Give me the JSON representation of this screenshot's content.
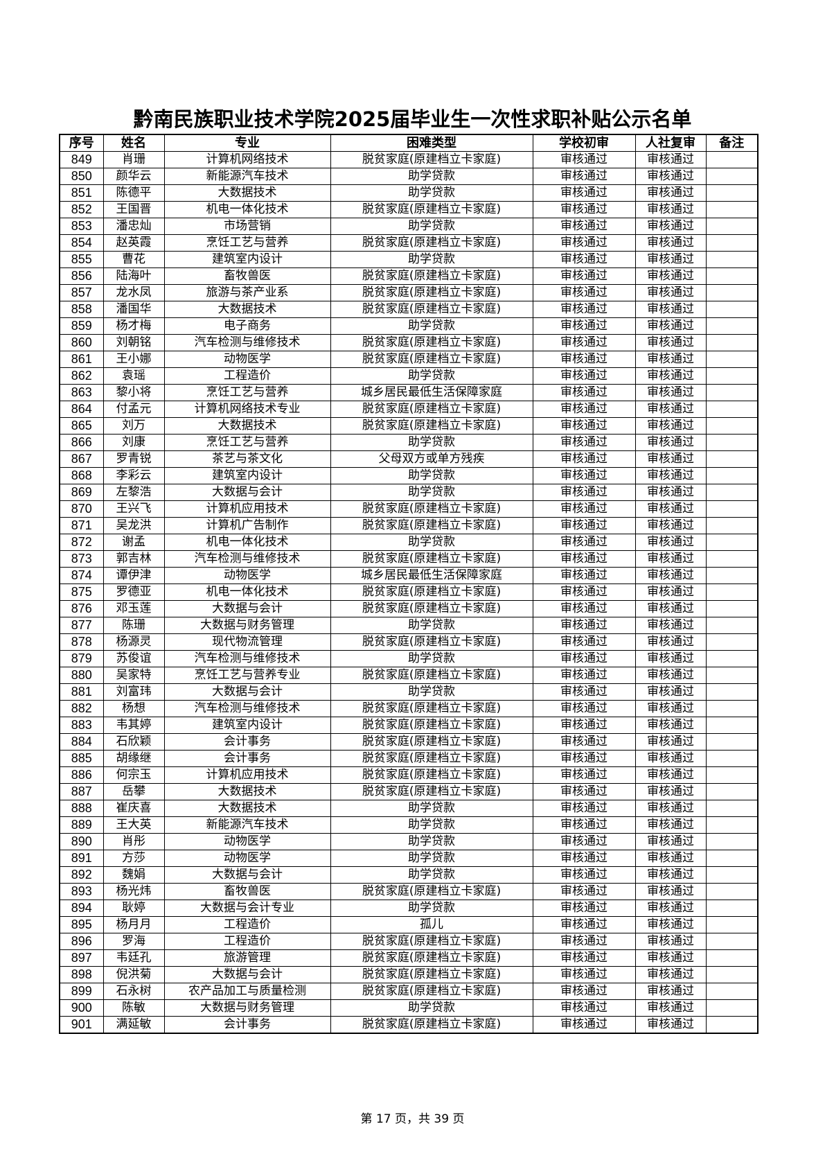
{
  "title": "黔南民族职业技术学院2025届毕业生一次性求职补贴公示名单",
  "columns": [
    "序号",
    "姓名",
    "专业",
    "困难类型",
    "学校初审",
    "人社复审",
    "备注"
  ],
  "rows": [
    [
      "849",
      "肖珊",
      "计算机网络技术",
      "脱贫家庭(原建档立卡家庭)",
      "审核通过",
      "审核通过",
      ""
    ],
    [
      "850",
      "颜华云",
      "新能源汽车技术",
      "助学贷款",
      "审核通过",
      "审核通过",
      ""
    ],
    [
      "851",
      "陈德平",
      "大数据技术",
      "助学贷款",
      "审核通过",
      "审核通过",
      ""
    ],
    [
      "852",
      "王国晋",
      "机电一体化技术",
      "脱贫家庭(原建档立卡家庭)",
      "审核通过",
      "审核通过",
      ""
    ],
    [
      "853",
      "潘忠灿",
      "市场营销",
      "助学贷款",
      "审核通过",
      "审核通过",
      ""
    ],
    [
      "854",
      "赵英霞",
      "烹饪工艺与营养",
      "脱贫家庭(原建档立卡家庭)",
      "审核通过",
      "审核通过",
      ""
    ],
    [
      "855",
      "曹花",
      "建筑室内设计",
      "助学贷款",
      "审核通过",
      "审核通过",
      ""
    ],
    [
      "856",
      "陆海叶",
      "畜牧兽医",
      "脱贫家庭(原建档立卡家庭)",
      "审核通过",
      "审核通过",
      ""
    ],
    [
      "857",
      "龙水凤",
      "旅游与茶产业系",
      "脱贫家庭(原建档立卡家庭)",
      "审核通过",
      "审核通过",
      ""
    ],
    [
      "858",
      "潘国华",
      "大数据技术",
      "脱贫家庭(原建档立卡家庭)",
      "审核通过",
      "审核通过",
      ""
    ],
    [
      "859",
      "杨才梅",
      "电子商务",
      "助学贷款",
      "审核通过",
      "审核通过",
      ""
    ],
    [
      "860",
      "刘朝铭",
      "汽车检测与维修技术",
      "脱贫家庭(原建档立卡家庭)",
      "审核通过",
      "审核通过",
      ""
    ],
    [
      "861",
      "王小娜",
      "动物医学",
      "脱贫家庭(原建档立卡家庭)",
      "审核通过",
      "审核通过",
      ""
    ],
    [
      "862",
      "袁瑶",
      "工程造价",
      "助学贷款",
      "审核通过",
      "审核通过",
      ""
    ],
    [
      "863",
      "黎小将",
      "烹饪工艺与营养",
      "城乡居民最低生活保障家庭",
      "审核通过",
      "审核通过",
      ""
    ],
    [
      "864",
      "付孟元",
      "计算机网络技术专业",
      "脱贫家庭(原建档立卡家庭)",
      "审核通过",
      "审核通过",
      ""
    ],
    [
      "865",
      "刘万",
      "大数据技术",
      "脱贫家庭(原建档立卡家庭)",
      "审核通过",
      "审核通过",
      ""
    ],
    [
      "866",
      "刘康",
      "烹饪工艺与营养",
      "助学贷款",
      "审核通过",
      "审核通过",
      ""
    ],
    [
      "867",
      "罗青锐",
      "茶艺与茶文化",
      "父母双方或单方残疾",
      "审核通过",
      "审核通过",
      ""
    ],
    [
      "868",
      "李彩云",
      "建筑室内设计",
      "助学贷款",
      "审核通过",
      "审核通过",
      ""
    ],
    [
      "869",
      "左黎浩",
      "大数据与会计",
      "助学贷款",
      "审核通过",
      "审核通过",
      ""
    ],
    [
      "870",
      "王兴飞",
      "计算机应用技术",
      "脱贫家庭(原建档立卡家庭)",
      "审核通过",
      "审核通过",
      ""
    ],
    [
      "871",
      "吴龙洪",
      "计算机广告制作",
      "脱贫家庭(原建档立卡家庭)",
      "审核通过",
      "审核通过",
      ""
    ],
    [
      "872",
      "谢孟",
      "机电一体化技术",
      "助学贷款",
      "审核通过",
      "审核通过",
      ""
    ],
    [
      "873",
      "郭吉林",
      "汽车检测与维修技术",
      "脱贫家庭(原建档立卡家庭)",
      "审核通过",
      "审核通过",
      ""
    ],
    [
      "874",
      "谭伊津",
      "动物医学",
      "城乡居民最低生活保障家庭",
      "审核通过",
      "审核通过",
      ""
    ],
    [
      "875",
      "罗德亚",
      "机电一体化技术",
      "脱贫家庭(原建档立卡家庭)",
      "审核通过",
      "审核通过",
      ""
    ],
    [
      "876",
      "邓玉莲",
      "大数据与会计",
      "脱贫家庭(原建档立卡家庭)",
      "审核通过",
      "审核通过",
      ""
    ],
    [
      "877",
      "陈珊",
      "大数据与财务管理",
      "助学贷款",
      "审核通过",
      "审核通过",
      ""
    ],
    [
      "878",
      "杨源灵",
      "现代物流管理",
      "脱贫家庭(原建档立卡家庭)",
      "审核通过",
      "审核通过",
      ""
    ],
    [
      "879",
      "苏俊谊",
      "汽车检测与维修技术",
      "助学贷款",
      "审核通过",
      "审核通过",
      ""
    ],
    [
      "880",
      "吴家特",
      "烹饪工艺与营养专业",
      "脱贫家庭(原建档立卡家庭)",
      "审核通过",
      "审核通过",
      ""
    ],
    [
      "881",
      "刘富玮",
      "大数据与会计",
      "助学贷款",
      "审核通过",
      "审核通过",
      ""
    ],
    [
      "882",
      "杨想",
      "汽车检测与维修技术",
      "脱贫家庭(原建档立卡家庭)",
      "审核通过",
      "审核通过",
      ""
    ],
    [
      "883",
      "韦其婷",
      "建筑室内设计",
      "脱贫家庭(原建档立卡家庭)",
      "审核通过",
      "审核通过",
      ""
    ],
    [
      "884",
      "石欣颖",
      "会计事务",
      "脱贫家庭(原建档立卡家庭)",
      "审核通过",
      "审核通过",
      ""
    ],
    [
      "885",
      "胡缘继",
      "会计事务",
      "脱贫家庭(原建档立卡家庭)",
      "审核通过",
      "审核通过",
      ""
    ],
    [
      "886",
      "何宗玉",
      "计算机应用技术",
      "脱贫家庭(原建档立卡家庭)",
      "审核通过",
      "审核通过",
      ""
    ],
    [
      "887",
      "岳攀",
      "大数据技术",
      "脱贫家庭(原建档立卡家庭)",
      "审核通过",
      "审核通过",
      ""
    ],
    [
      "888",
      "崔庆喜",
      "大数据技术",
      "助学贷款",
      "审核通过",
      "审核通过",
      ""
    ],
    [
      "889",
      "王大英",
      "新能源汽车技术",
      "助学贷款",
      "审核通过",
      "审核通过",
      ""
    ],
    [
      "890",
      "肖彤",
      "动物医学",
      "助学贷款",
      "审核通过",
      "审核通过",
      ""
    ],
    [
      "891",
      "方莎",
      "动物医学",
      "助学贷款",
      "审核通过",
      "审核通过",
      ""
    ],
    [
      "892",
      "魏娟",
      "大数据与会计",
      "助学贷款",
      "审核通过",
      "审核通过",
      ""
    ],
    [
      "893",
      "杨光炜",
      "畜牧兽医",
      "脱贫家庭(原建档立卡家庭)",
      "审核通过",
      "审核通过",
      ""
    ],
    [
      "894",
      "耿婷",
      "大数据与会计专业",
      "助学贷款",
      "审核通过",
      "审核通过",
      ""
    ],
    [
      "895",
      "杨月月",
      "工程造价",
      "孤儿",
      "审核通过",
      "审核通过",
      ""
    ],
    [
      "896",
      "罗海",
      "工程造价",
      "脱贫家庭(原建档立卡家庭)",
      "审核通过",
      "审核通过",
      ""
    ],
    [
      "897",
      "韦廷孔",
      "旅游管理",
      "脱贫家庭(原建档立卡家庭)",
      "审核通过",
      "审核通过",
      ""
    ],
    [
      "898",
      "倪洪菊",
      "大数据与会计",
      "脱贫家庭(原建档立卡家庭)",
      "审核通过",
      "审核通过",
      ""
    ],
    [
      "899",
      "石永树",
      "农产品加工与质量检测",
      "脱贫家庭(原建档立卡家庭)",
      "审核通过",
      "审核通过",
      ""
    ],
    [
      "900",
      "陈敏",
      "大数据与财务管理",
      "助学贷款",
      "审核通过",
      "审核通过",
      ""
    ],
    [
      "901",
      "满延敏",
      "会计事务",
      "脱贫家庭(原建档立卡家庭)",
      "审核通过",
      "审核通过",
      ""
    ]
  ],
  "footer": "第 17 页，共 39 页"
}
